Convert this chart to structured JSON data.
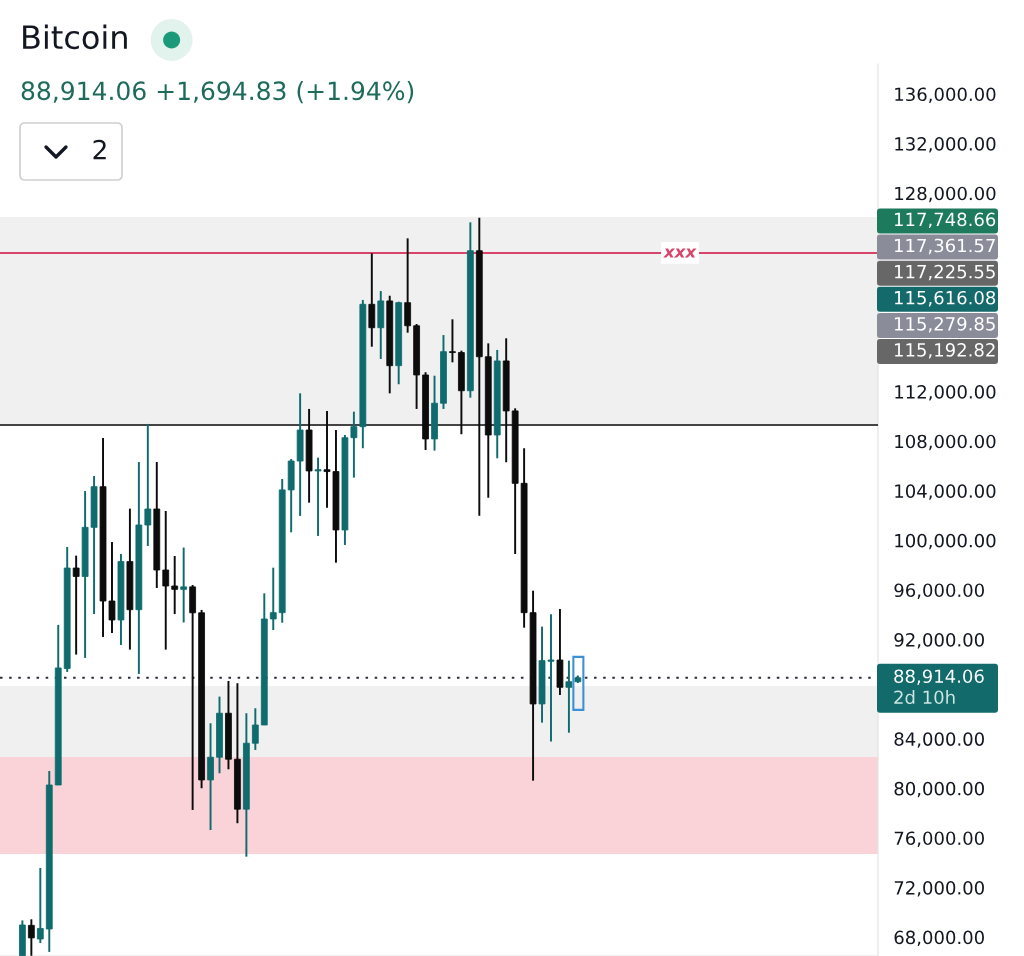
{
  "chart_data": {
    "type": "candlestick",
    "title": "Bitcoin",
    "subtitle": "88,914.06 +1,694.83 (+1.94%)",
    "categories": [
      null,
      null,
      null,
      null,
      null,
      null,
      null,
      null,
      null,
      null,
      null,
      null,
      null,
      null,
      null,
      null,
      null,
      null,
      null,
      null,
      null,
      null,
      null,
      null,
      null,
      null,
      null,
      null,
      null,
      null,
      null,
      null,
      null,
      null,
      null,
      null,
      null,
      null,
      null,
      null,
      null,
      null,
      null,
      null,
      null,
      null,
      null,
      null,
      null,
      null,
      null,
      null,
      null,
      null,
      null,
      null,
      null,
      null,
      null,
      null,
      null,
      null,
      null,
      null,
      null,
      null,
      null,
      null,
      null,
      null,
      null,
      null,
      null,
      null,
      null,
      null,
      null,
      null,
      null,
      null,
      null,
      null,
      null,
      null,
      null,
      null,
      null,
      null,
      null,
      null,
      null,
      null,
      null,
      null,
      null,
      null,
      null,
      null
    ],
    "ohlc": [
      null,
      null,
      [
        66500,
        69350,
        66500,
        68980
      ],
      [
        68950,
        69440,
        66500,
        67940
      ],
      [
        67850,
        73580,
        67530,
        68700
      ],
      [
        68660,
        81400,
        66810,
        80270
      ],
      [
        80270,
        93180,
        80270,
        89710
      ],
      [
        89670,
        99470,
        89390,
        97770
      ],
      [
        97770,
        98770,
        90790,
        97090
      ],
      [
        97090,
        103980,
        90520,
        101050
      ],
      [
        101050,
        105190,
        94060,
        104330
      ],
      [
        104330,
        108260,
        92210,
        95110
      ],
      [
        95110,
        99870,
        92530,
        93580
      ],
      [
        93580,
        98900,
        91560,
        98290
      ],
      [
        98290,
        102560,
        91190,
        94410
      ],
      [
        94410,
        106320,
        89230,
        101240
      ],
      [
        101240,
        109390,
        99550,
        102530
      ],
      [
        102530,
        106320,
        96160,
        97610
      ],
      [
        97610,
        102370,
        91190,
        96320
      ],
      [
        96320,
        98740,
        94060,
        96050
      ],
      [
        96050,
        99420,
        93380,
        96250
      ],
      [
        96250,
        96400,
        78260,
        94160
      ],
      [
        94160,
        94390,
        80010,
        80680
      ],
      [
        80680,
        85250,
        76640,
        82510
      ],
      [
        82510,
        87400,
        81220,
        86060
      ],
      [
        86060,
        88660,
        81540,
        82350
      ],
      [
        82350,
        88480,
        77190,
        78320
      ],
      [
        78320,
        86060,
        74490,
        83640
      ],
      [
        83640,
        86460,
        83100,
        85110
      ],
      [
        85110,
        95730,
        85110,
        93660
      ],
      [
        93660,
        97800,
        92770,
        94170
      ],
      [
        94170,
        104950,
        93360,
        104070
      ],
      [
        104070,
        106560,
        100650,
        106400
      ],
      [
        106400,
        111860,
        101970,
        108900
      ],
      [
        108900,
        110600,
        103040,
        105600
      ],
      [
        105600,
        106670,
        100360,
        105700
      ],
      [
        105700,
        110440,
        102640,
        105550
      ],
      [
        105550,
        108900,
        98200,
        100840
      ],
      [
        100840,
        108500,
        99630,
        108280
      ],
      [
        108280,
        110380,
        105060,
        109170
      ],
      [
        109170,
        119390,
        107430,
        119040
      ],
      [
        119040,
        123150,
        115620,
        117150
      ],
      [
        117150,
        120110,
        114630,
        119310
      ],
      [
        119310,
        119730,
        111860,
        114090
      ],
      [
        114090,
        119250,
        112590,
        119170
      ],
      [
        119170,
        124360,
        116750,
        117310
      ],
      [
        117310,
        117450,
        110600,
        113340
      ],
      [
        113340,
        113560,
        107290,
        108180
      ],
      [
        108180,
        113280,
        107240,
        111060
      ],
      [
        111060,
        116560,
        110600,
        115220
      ],
      [
        115220,
        117830,
        114360,
        115150
      ],
      [
        115150,
        115300,
        108560,
        112070
      ],
      [
        112070,
        125650,
        111510,
        123360
      ],
      [
        123360,
        126020,
        101990,
        114810
      ],
      [
        114810,
        115890,
        103440,
        108500
      ],
      [
        108500,
        115360,
        106620,
        114470
      ],
      [
        114470,
        116300,
        106300,
        110440
      ],
      [
        110440,
        110650,
        98900,
        104600
      ],
      [
        104600,
        107430,
        92960,
        94170
      ],
      [
        94170,
        95940,
        80620,
        86810
      ],
      [
        86810,
        93040,
        85300,
        90300
      ],
      [
        90250,
        94040,
        83770,
        90350
      ],
      [
        90350,
        94470,
        87530,
        88150
      ],
      [
        88150,
        90300,
        84490,
        88600
      ],
      [
        88600,
        89100,
        88500,
        88914.06
      ],
      null,
      null,
      null,
      null,
      null,
      null,
      null,
      null,
      null,
      null,
      null,
      null,
      null,
      null,
      null,
      null,
      null,
      null,
      null,
      null,
      null,
      null,
      null,
      null,
      null,
      null,
      null,
      null,
      null,
      null,
      null,
      null,
      null
    ],
    "colors": [
      null,
      null,
      "#0f6b6d",
      "#0c0c0c",
      "#0f6b6d",
      "#0f6b6d",
      "#0f6b6d",
      "#0f6b6d",
      "#0c0c0c",
      "#0f6b6d",
      "#0f6b6d",
      "#0c0c0c",
      "#0c0c0c",
      "#0f6b6d",
      "#0c0c0c",
      "#0f6b6d",
      "#0f6b6d",
      "#0c0c0c",
      "#0c0c0c",
      "#0c0c0c",
      "#0f6b6d",
      "#0c0c0c",
      "#0c0c0c",
      "#0f6b6d",
      "#0f6b6d",
      "#0c0c0c",
      "#0c0c0c",
      "#0f6b6d",
      "#0f6b6d",
      "#0f6b6d",
      "#0f6b6d",
      "#0f6b6d",
      "#0f6b6d",
      "#0f6b6d",
      "#0c0c0c",
      "#0f6b6d",
      "#0c0c0c",
      "#0c0c0c",
      "#0f6b6d",
      "#0f6b6d",
      "#0f6b6d",
      "#0c0c0c",
      "#0f6b6d",
      "#0c0c0c",
      "#0f6b6d",
      "#0c0c0c",
      "#0c0c0c",
      "#0c0c0c",
      "#0f6b6d",
      "#0f6b6d",
      "#0c0c0c",
      "#0c0c0c",
      "#0f6b6d",
      "#0c0c0c",
      "#0c0c0c",
      "#0f6b6d",
      "#0c0c0c",
      "#0c0c0c",
      "#0c0c0c",
      "#0c0c0c",
      "#0f6b6d",
      "#0f6b6d",
      "#0c0c0c",
      "#0f6b6d",
      "#0f6b6d",
      null,
      null,
      null,
      null,
      null,
      null,
      null,
      null,
      null,
      null,
      null,
      null,
      null,
      null,
      null,
      null,
      null,
      null,
      null,
      null,
      null,
      null,
      null,
      null,
      null,
      null,
      null,
      null,
      null,
      null,
      null,
      null,
      null
    ],
    "ylim": [
      66480,
      138420
    ],
    "yticks": [
      {
        "value": 136000,
        "label": "136,000.00"
      },
      {
        "value": 132000,
        "label": "132,000.00"
      },
      {
        "value": 128000,
        "label": "128,000.00"
      },
      {
        "value": 112000,
        "label": "112,000.00"
      },
      {
        "value": 108000,
        "label": "108,000.00"
      },
      {
        "value": 104000,
        "label": "104,000.00"
      },
      {
        "value": 100000,
        "label": "100,000.00"
      },
      {
        "value": 96000,
        "label": "96,000.00"
      },
      {
        "value": 92000,
        "label": "92,000.00"
      },
      {
        "value": 84000,
        "label": "84,000.00"
      },
      {
        "value": 80000,
        "label": "80,000.00"
      },
      {
        "value": 76000,
        "label": "76,000.00"
      },
      {
        "value": 72000,
        "label": "72,000.00"
      },
      {
        "value": 68000,
        "label": "68,000.00"
      }
    ],
    "tick_labels": "y",
    "ref_lines": [
      {
        "axis": "y",
        "value": 109300,
        "color": "#444444"
      },
      {
        "axis": "y",
        "value": 123180,
        "label": "xxx",
        "color": "#d9456a"
      },
      {
        "axis": "y",
        "value": 88914.06,
        "label": "88,914.06",
        "color": "#2a2e39",
        "line_style": "dotted"
      }
    ],
    "bands": [
      {
        "axis": "y",
        "from": 109310,
        "to": 126080,
        "color": "#f0f0f0"
      },
      {
        "axis": "y",
        "from": 77290,
        "to": 88260,
        "color": "#f0f0f0"
      },
      {
        "axis": "y",
        "from": 74710,
        "to": 82530,
        "color": "#f9d3d8"
      }
    ],
    "annotations": [
      "2",
      "2d 10h",
      "117,748.66",
      "117,361.57",
      "117,225.55",
      "115,616.08",
      "115,279.85",
      "115,192.82"
    ]
  }
}
